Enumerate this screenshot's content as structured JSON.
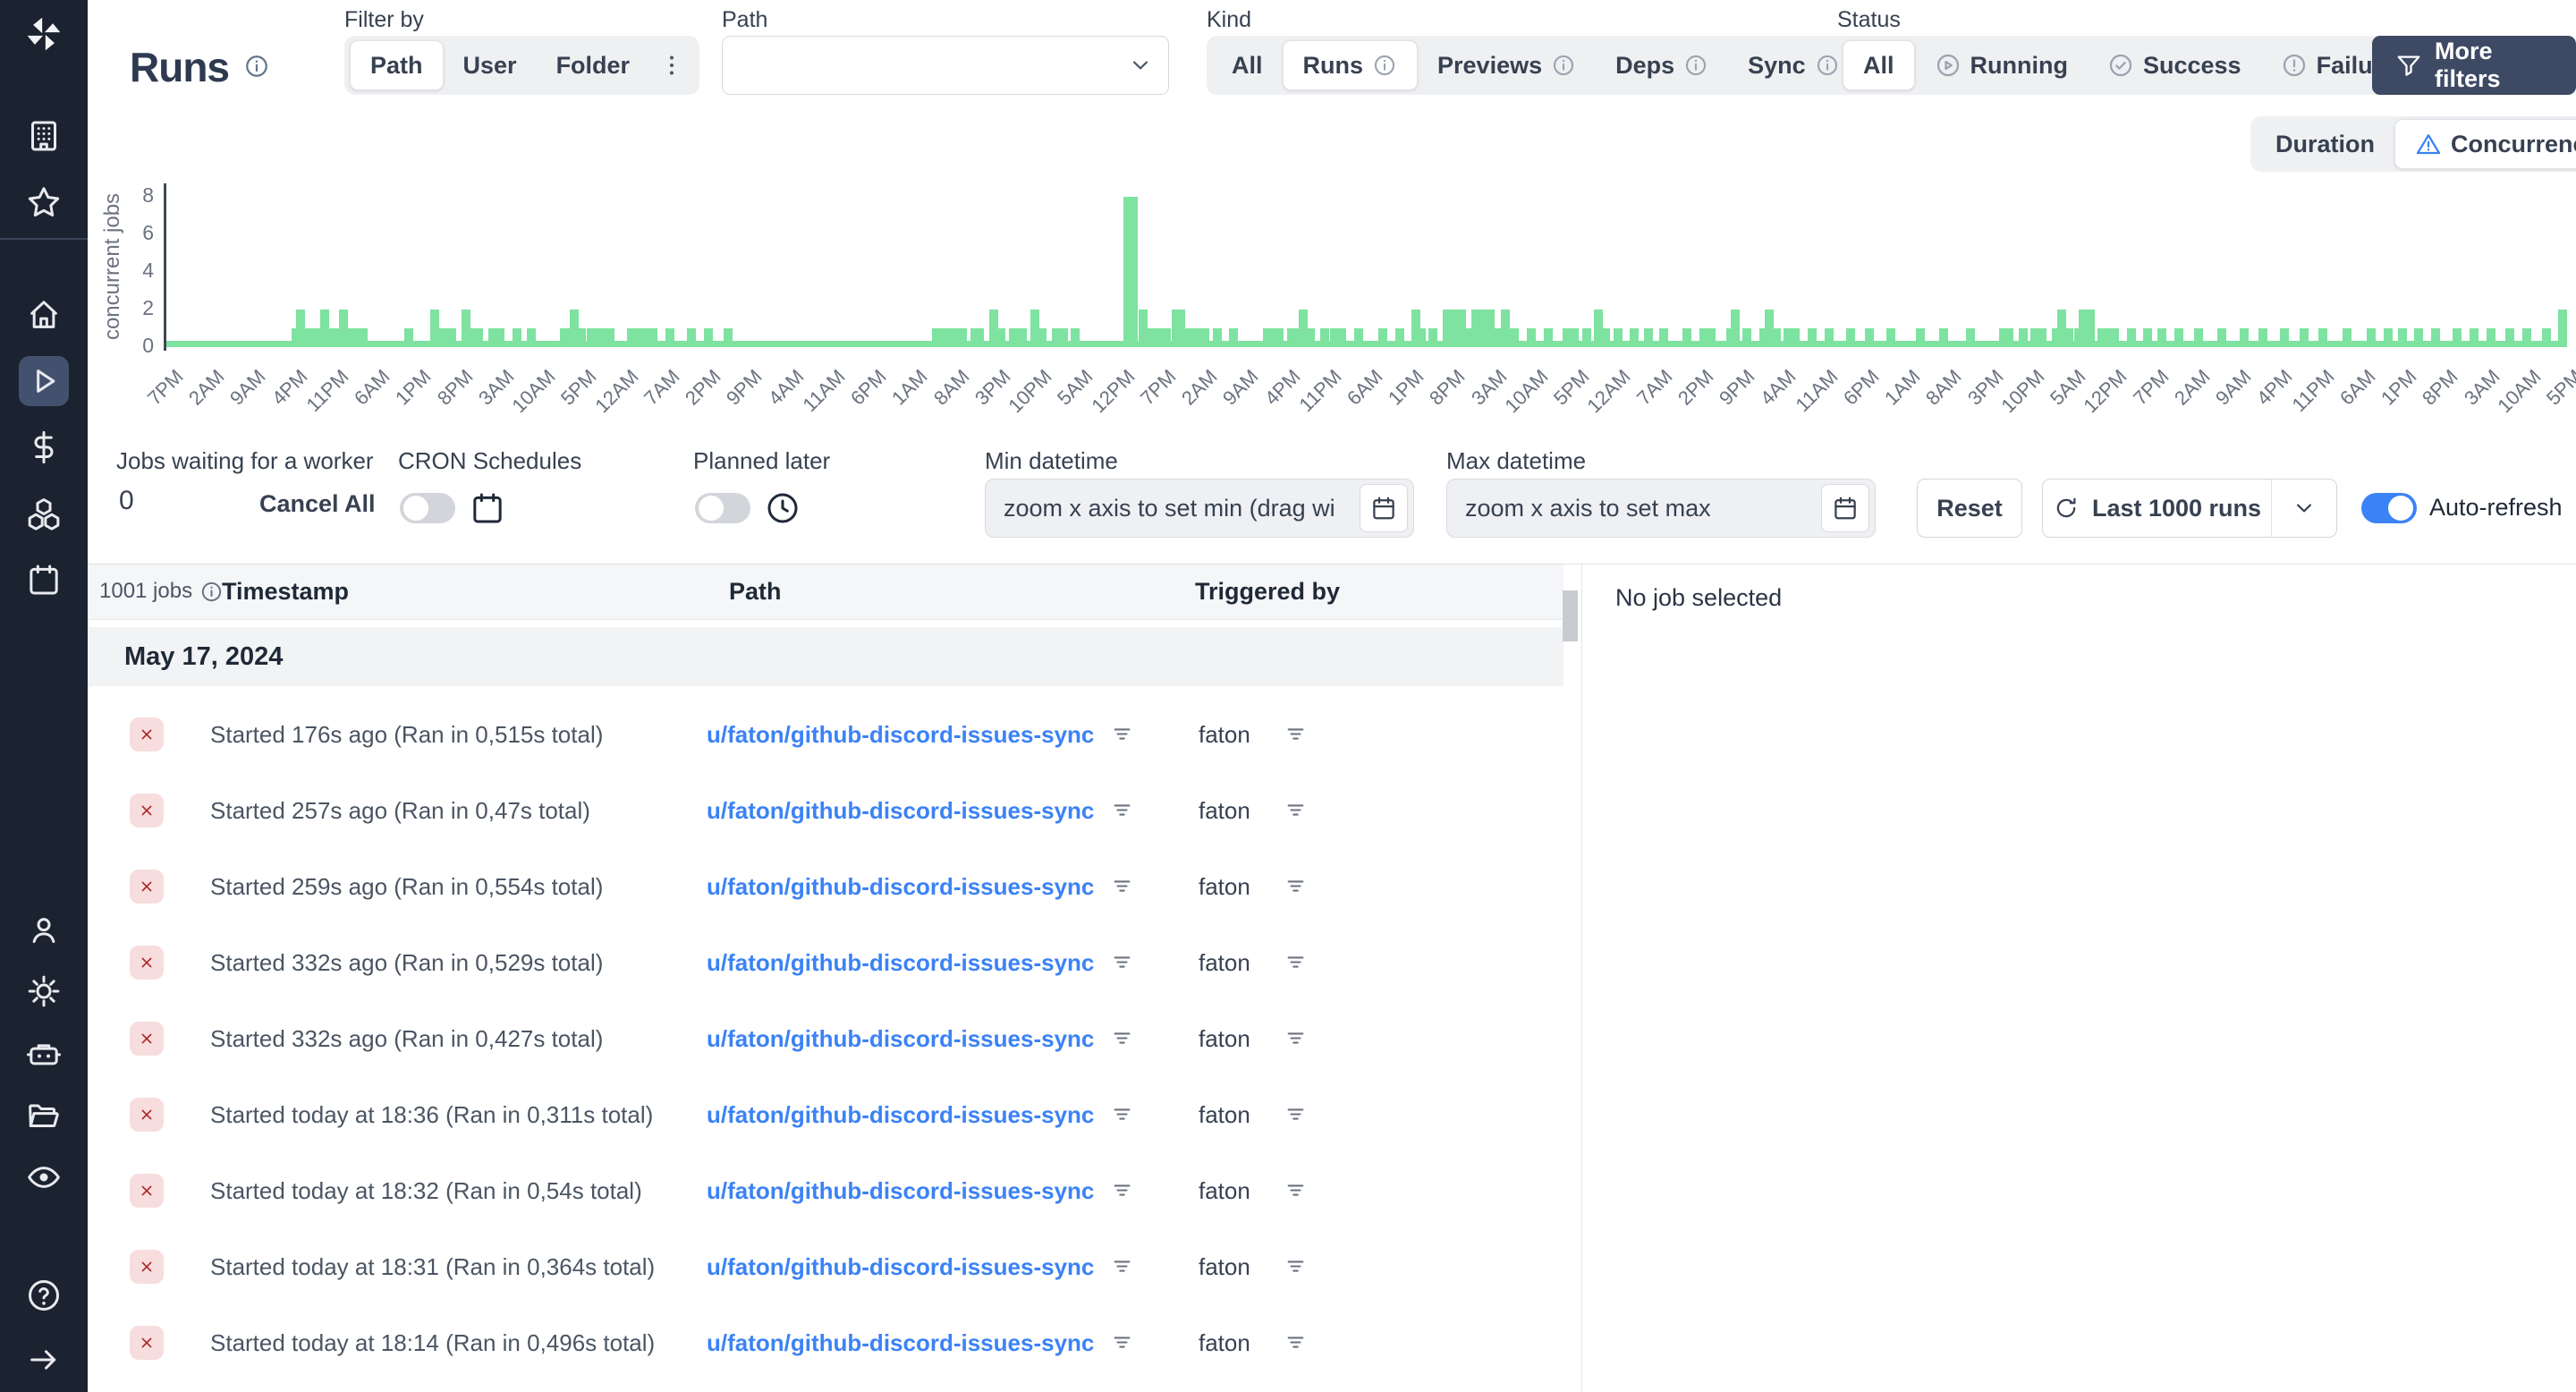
{
  "topbar": {
    "title": "Runs",
    "filter_by": {
      "label": "Filter by",
      "options": [
        "Path",
        "User",
        "Folder"
      ],
      "selected": "Path"
    },
    "path_select": {
      "label": "Path",
      "value": ""
    },
    "kind": {
      "label": "Kind",
      "selected": "Runs",
      "options": [
        {
          "label": "All"
        },
        {
          "label": "Runs",
          "info": true
        },
        {
          "label": "Previews",
          "info": true
        },
        {
          "label": "Deps",
          "info": true
        },
        {
          "label": "Sync",
          "info": true
        }
      ]
    },
    "status": {
      "label": "Status",
      "selected": "All",
      "options": [
        {
          "label": "All"
        },
        {
          "label": "Running",
          "icon": "play-circle"
        },
        {
          "label": "Success",
          "icon": "check-circle"
        },
        {
          "label": "Failure",
          "icon": "alert-circle"
        }
      ]
    },
    "more_filters": "More filters"
  },
  "view_toggle": {
    "selected": "Concurrency",
    "options": [
      {
        "label": "Duration"
      },
      {
        "label": "Concurrency",
        "icon": "warning-triangle"
      }
    ]
  },
  "chart_data": {
    "type": "bar",
    "ylabel": "concurrent jobs",
    "yticks": [
      0,
      2,
      4,
      6,
      8
    ],
    "ylim": [
      0,
      8.6
    ],
    "grid": false,
    "bar_color": "#7ee2a0",
    "x_tick_labels": [
      "7PM",
      "2AM",
      "9AM",
      "4PM",
      "11PM",
      "6AM",
      "1PM",
      "8PM",
      "3AM",
      "10AM",
      "5PM",
      "12AM",
      "7AM",
      "2PM",
      "9PM",
      "4AM",
      "11AM",
      "6PM",
      "1AM",
      "8AM",
      "3PM",
      "10PM",
      "5AM",
      "12PM",
      "7PM",
      "2AM",
      "9AM",
      "4PM",
      "11PM",
      "6AM",
      "1PM",
      "8PM",
      "3AM",
      "10AM",
      "5PM",
      "12AM",
      "7AM",
      "2PM",
      "9PM",
      "4AM",
      "11AM",
      "6PM",
      "1AM",
      "8AM",
      "3PM",
      "10PM",
      "5AM",
      "12PM",
      "7PM",
      "2AM",
      "9AM",
      "4PM",
      "11PM",
      "6AM",
      "1PM",
      "8PM",
      "3AM",
      "10AM",
      "5PM"
    ],
    "bars_note": "pairs of [x permille of plot width, concurrent jobs]",
    "bars": [
      [
        54,
        1
      ],
      [
        56,
        2
      ],
      [
        59,
        1
      ],
      [
        61,
        1
      ],
      [
        64,
        1
      ],
      [
        66,
        2
      ],
      [
        69,
        1
      ],
      [
        72,
        1
      ],
      [
        74,
        2
      ],
      [
        77,
        1
      ],
      [
        80,
        1
      ],
      [
        82,
        1
      ],
      [
        101,
        1
      ],
      [
        112,
        2
      ],
      [
        114,
        1
      ],
      [
        117,
        1
      ],
      [
        119,
        1
      ],
      [
        125,
        2
      ],
      [
        128,
        1
      ],
      [
        130,
        1
      ],
      [
        136,
        1
      ],
      [
        139,
        1
      ],
      [
        146,
        1
      ],
      [
        152,
        1
      ],
      [
        166,
        1
      ],
      [
        168,
        1
      ],
      [
        170,
        2
      ],
      [
        173,
        1
      ],
      [
        177,
        1
      ],
      [
        179,
        1
      ],
      [
        182,
        1
      ],
      [
        185,
        1
      ],
      [
        194,
        1
      ],
      [
        197,
        1
      ],
      [
        200,
        1
      ],
      [
        203,
        1
      ],
      [
        210,
        1
      ],
      [
        219,
        1
      ],
      [
        226,
        1
      ],
      [
        234,
        1
      ],
      [
        321,
        1
      ],
      [
        323,
        1
      ],
      [
        326,
        1
      ],
      [
        329,
        1
      ],
      [
        332,
        1
      ],
      [
        337,
        1
      ],
      [
        339,
        1
      ],
      [
        345,
        2
      ],
      [
        348,
        1
      ],
      [
        353,
        1
      ],
      [
        357,
        1
      ],
      [
        362,
        2
      ],
      [
        365,
        1
      ],
      [
        371,
        1
      ],
      [
        374,
        1
      ],
      [
        379,
        1
      ],
      [
        401,
        8
      ],
      [
        403,
        8
      ],
      [
        407,
        2
      ],
      [
        410,
        1
      ],
      [
        414,
        1
      ],
      [
        417,
        1
      ],
      [
        421,
        2
      ],
      [
        423,
        2
      ],
      [
        426,
        1
      ],
      [
        429,
        1
      ],
      [
        433,
        1
      ],
      [
        438,
        1
      ],
      [
        445,
        1
      ],
      [
        459,
        1
      ],
      [
        461,
        1
      ],
      [
        464,
        1
      ],
      [
        469,
        1
      ],
      [
        472,
        1
      ],
      [
        474,
        2
      ],
      [
        477,
        1
      ],
      [
        483,
        1
      ],
      [
        487,
        1
      ],
      [
        490,
        1
      ],
      [
        497,
        1
      ],
      [
        507,
        1
      ],
      [
        514,
        1
      ],
      [
        521,
        2
      ],
      [
        523,
        1
      ],
      [
        528,
        1
      ],
      [
        534,
        2
      ],
      [
        537,
        2
      ],
      [
        540,
        2
      ],
      [
        543,
        1
      ],
      [
        546,
        2
      ],
      [
        549,
        2
      ],
      [
        552,
        2
      ],
      [
        555,
        1
      ],
      [
        558,
        2
      ],
      [
        562,
        1
      ],
      [
        569,
        1
      ],
      [
        576,
        1
      ],
      [
        584,
        1
      ],
      [
        587,
        1
      ],
      [
        592,
        1
      ],
      [
        597,
        2
      ],
      [
        600,
        1
      ],
      [
        605,
        1
      ],
      [
        612,
        1
      ],
      [
        618,
        1
      ],
      [
        624,
        1
      ],
      [
        634,
        1
      ],
      [
        641,
        1
      ],
      [
        644,
        1
      ],
      [
        652,
        1
      ],
      [
        654,
        2
      ],
      [
        659,
        1
      ],
      [
        666,
        1
      ],
      [
        668,
        2
      ],
      [
        671,
        1
      ],
      [
        676,
        1
      ],
      [
        679,
        1
      ],
      [
        686,
        1
      ],
      [
        693,
        1
      ],
      [
        702,
        1
      ],
      [
        710,
        1
      ],
      [
        719,
        1
      ],
      [
        731,
        1
      ],
      [
        741,
        1
      ],
      [
        752,
        1
      ],
      [
        766,
        1
      ],
      [
        768,
        1
      ],
      [
        774,
        1
      ],
      [
        779,
        1
      ],
      [
        782,
        1
      ],
      [
        788,
        1
      ],
      [
        790,
        2
      ],
      [
        793,
        1
      ],
      [
        797,
        1
      ],
      [
        799,
        2
      ],
      [
        802,
        2
      ],
      [
        807,
        1
      ],
      [
        810,
        1
      ],
      [
        812,
        1
      ],
      [
        819,
        1
      ],
      [
        826,
        1
      ],
      [
        832,
        1
      ],
      [
        839,
        1
      ],
      [
        847,
        1
      ],
      [
        857,
        1
      ],
      [
        866,
        1
      ],
      [
        874,
        1
      ],
      [
        883,
        1
      ],
      [
        891,
        1
      ],
      [
        899,
        1
      ],
      [
        909,
        1
      ],
      [
        919,
        1
      ],
      [
        926,
        1
      ],
      [
        932,
        1
      ],
      [
        939,
        1
      ],
      [
        946,
        1
      ],
      [
        955,
        1
      ],
      [
        962,
        1
      ],
      [
        969,
        1
      ],
      [
        977,
        1
      ],
      [
        984,
        1
      ],
      [
        992,
        1
      ],
      [
        999,
        2
      ]
    ]
  },
  "controls": {
    "jobs_waiting": {
      "label": "Jobs waiting for a worker",
      "value": "0"
    },
    "cancel_all": "Cancel All",
    "cron_schedules": {
      "label": "CRON Schedules",
      "enabled": false
    },
    "planned_later": {
      "label": "Planned later",
      "enabled": false
    },
    "min_datetime": {
      "label": "Min datetime",
      "placeholder": "zoom x axis to set min (drag wi"
    },
    "max_datetime": {
      "label": "Max datetime",
      "placeholder": "zoom x axis to set max"
    },
    "reset": "Reset",
    "runs_select": {
      "label": "Last 1000 runs"
    },
    "auto_refresh": {
      "label": "Auto-refresh",
      "enabled": true
    }
  },
  "table": {
    "jobs_count": "1001 jobs",
    "columns": [
      "Timestamp",
      "Path",
      "Triggered by"
    ],
    "group": "May 17, 2024",
    "rows": [
      {
        "status": "failure",
        "timestamp": "Started 176s ago (Ran in 0,515s total)",
        "path": "u/faton/github-discord-issues-sync",
        "triggered_by": "faton"
      },
      {
        "status": "failure",
        "timestamp": "Started 257s ago (Ran in 0,47s total)",
        "path": "u/faton/github-discord-issues-sync",
        "triggered_by": "faton"
      },
      {
        "status": "failure",
        "timestamp": "Started 259s ago (Ran in 0,554s total)",
        "path": "u/faton/github-discord-issues-sync",
        "triggered_by": "faton"
      },
      {
        "status": "failure",
        "timestamp": "Started 332s ago (Ran in 0,529s total)",
        "path": "u/faton/github-discord-issues-sync",
        "triggered_by": "faton"
      },
      {
        "status": "failure",
        "timestamp": "Started 332s ago (Ran in 0,427s total)",
        "path": "u/faton/github-discord-issues-sync",
        "triggered_by": "faton"
      },
      {
        "status": "failure",
        "timestamp": "Started today at 18:36 (Ran in 0,311s total)",
        "path": "u/faton/github-discord-issues-sync",
        "triggered_by": "faton"
      },
      {
        "status": "failure",
        "timestamp": "Started today at 18:32 (Ran in 0,54s total)",
        "path": "u/faton/github-discord-issues-sync",
        "triggered_by": "faton"
      },
      {
        "status": "failure",
        "timestamp": "Started today at 18:31 (Ran in 0,364s total)",
        "path": "u/faton/github-discord-issues-sync",
        "triggered_by": "faton"
      },
      {
        "status": "failure",
        "timestamp": "Started today at 18:14 (Ran in 0,496s total)",
        "path": "u/faton/github-discord-issues-sync",
        "triggered_by": "faton"
      }
    ]
  },
  "detail_panel": {
    "empty": "No job selected"
  },
  "sidebar": {
    "items": [
      {
        "name": "workspace",
        "icon": "building"
      },
      {
        "name": "favorites",
        "icon": "star"
      },
      {
        "name": "home",
        "icon": "home"
      },
      {
        "name": "runs",
        "icon": "play",
        "selected": true
      },
      {
        "name": "variables",
        "icon": "dollar"
      },
      {
        "name": "resources",
        "icon": "boxes"
      },
      {
        "name": "schedules",
        "icon": "calendar"
      },
      {
        "name": "users",
        "icon": "user"
      },
      {
        "name": "settings",
        "icon": "gear"
      },
      {
        "name": "workers",
        "icon": "robot"
      },
      {
        "name": "folders",
        "icon": "folder"
      },
      {
        "name": "audit-logs",
        "icon": "eye"
      },
      {
        "name": "help",
        "icon": "help"
      },
      {
        "name": "expand",
        "icon": "arrow-right"
      }
    ]
  },
  "colors": {
    "accent": "#3b82f6",
    "bar": "#7ee2a0",
    "dark_button": "#3e4a64",
    "link": "#3b82f6",
    "failure_bg": "#f7dddd",
    "failure_fg": "#a92626",
    "sidebar_bg": "#1b2230"
  }
}
